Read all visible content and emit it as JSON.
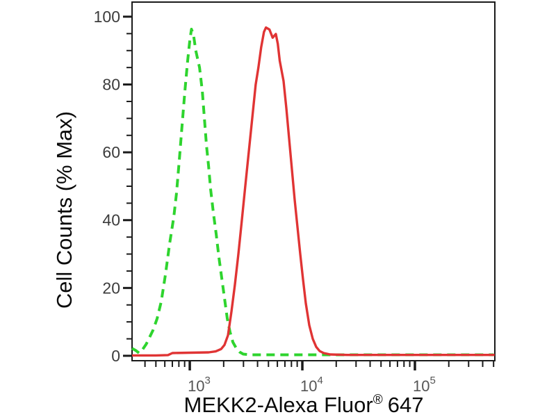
{
  "chart_data": {
    "type": "line",
    "title": "",
    "xlabel": {
      "prefix": "MEKK2-Alexa Fluor",
      "reg": "®",
      "suffix": "647"
    },
    "ylabel": "Cell Counts (% Max)",
    "x_scale": "log",
    "x_range": [
      307,
      513000
    ],
    "y_range": [
      -1.45,
      104.3
    ],
    "x_major_ticks": [
      1000,
      10000,
      100000
    ],
    "x_tick_base": "10",
    "x_tick_exponents": [
      "3",
      "4",
      "5"
    ],
    "x_minor_tick_decades": [
      100,
      1000,
      10000,
      100000
    ],
    "y_major_ticks": [
      0,
      20,
      40,
      60,
      80,
      100
    ],
    "y_minor_step": 5,
    "grid": "off",
    "legend": "none",
    "axis_color": "#1a1a1a",
    "series": [
      {
        "name": "green-dashed-control",
        "color": "#2ed42e",
        "style": "dashed",
        "points": [
          [
            307,
            2.2
          ],
          [
            330,
            1.6
          ],
          [
            355,
            0.8
          ],
          [
            380,
            1.8
          ],
          [
            410,
            3.4
          ],
          [
            440,
            5.5
          ],
          [
            471,
            7.5
          ],
          [
            513,
            11
          ],
          [
            558,
            16
          ],
          [
            608,
            24
          ],
          [
            662,
            33
          ],
          [
            721,
            41
          ],
          [
            763,
            48
          ],
          [
            808,
            58
          ],
          [
            855,
            68
          ],
          [
            905,
            78
          ],
          [
            958,
            87
          ],
          [
            1000,
            93
          ],
          [
            1035,
            96.3
          ],
          [
            1080,
            94.5
          ],
          [
            1130,
            90
          ],
          [
            1220,
            85
          ],
          [
            1292,
            78
          ],
          [
            1348,
            70
          ],
          [
            1407,
            62
          ],
          [
            1468,
            56
          ],
          [
            1532,
            49
          ],
          [
            1622,
            42
          ],
          [
            1716,
            36
          ],
          [
            1816,
            29
          ],
          [
            1922,
            23
          ],
          [
            2035,
            17
          ],
          [
            2153,
            11
          ],
          [
            2278,
            7
          ],
          [
            2414,
            4
          ],
          [
            2592,
            2.2
          ],
          [
            2782,
            1.1
          ],
          [
            2987,
            0.5
          ],
          [
            3500,
            0.3
          ],
          [
            4500,
            0.3
          ],
          [
            6000,
            0.3
          ],
          [
            8000,
            0.3
          ],
          [
            11000,
            0.3
          ],
          [
            15000,
            0.3
          ],
          [
            21000,
            0.3
          ],
          [
            30000,
            0.3
          ],
          [
            45000,
            0.3
          ],
          [
            65000,
            0.3
          ],
          [
            95000,
            0.3
          ],
          [
            140000,
            0.3
          ],
          [
            210000,
            0.3
          ],
          [
            320000,
            0.3
          ],
          [
            500000,
            0.3
          ]
        ]
      },
      {
        "name": "red-solid-mekk2",
        "color": "#e03434",
        "style": "solid",
        "points": [
          [
            307,
            0.1
          ],
          [
            500,
            0.1
          ],
          [
            640,
            0.2
          ],
          [
            700,
            0.8
          ],
          [
            1000,
            0.9
          ],
          [
            1470,
            1.0
          ],
          [
            1700,
            1.3
          ],
          [
            1900,
            2.0
          ],
          [
            2035,
            3.2
          ],
          [
            2185,
            6
          ],
          [
            2345,
            13
          ],
          [
            2518,
            21
          ],
          [
            2702,
            30
          ],
          [
            2900,
            40
          ],
          [
            3113,
            50
          ],
          [
            3341,
            60
          ],
          [
            3586,
            70
          ],
          [
            3849,
            80
          ],
          [
            4072,
            85
          ],
          [
            4308,
            91
          ],
          [
            4558,
            95.5
          ],
          [
            4754,
            96.8
          ],
          [
            5100,
            96.2
          ],
          [
            5450,
            93.8
          ],
          [
            5815,
            94.9
          ],
          [
            6053,
            92
          ],
          [
            6302,
            87
          ],
          [
            6812,
            81
          ],
          [
            7211,
            73
          ],
          [
            7634,
            64
          ],
          [
            8081,
            55
          ],
          [
            8553,
            46
          ],
          [
            9053,
            38
          ],
          [
            9582,
            30
          ],
          [
            10143,
            22.5
          ],
          [
            10736,
            15.5
          ],
          [
            11524,
            9
          ],
          [
            12370,
            5
          ],
          [
            13278,
            2.6
          ],
          [
            14252,
            1.4
          ],
          [
            15499,
            0.8
          ],
          [
            17658,
            0.4
          ],
          [
            25000,
            0.25
          ],
          [
            60000,
            0.25
          ],
          [
            150000,
            0.25
          ],
          [
            350000,
            0.25
          ],
          [
            511000,
            0.25
          ]
        ]
      }
    ]
  }
}
